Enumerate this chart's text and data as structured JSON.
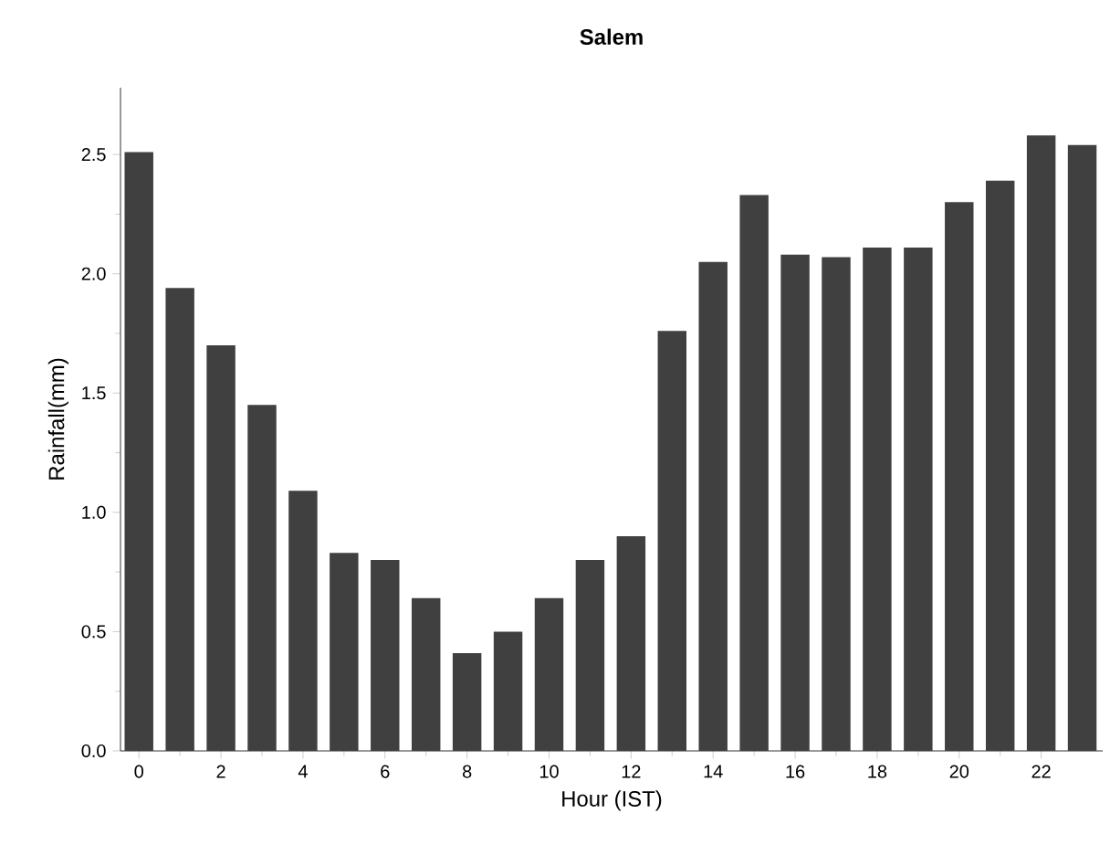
{
  "chart_data": {
    "type": "bar",
    "title": "Salem",
    "xlabel": "Hour (IST)",
    "ylabel": "Rainfall(mm)",
    "x": [
      0,
      1,
      2,
      3,
      4,
      5,
      6,
      7,
      8,
      9,
      10,
      11,
      12,
      13,
      14,
      15,
      16,
      17,
      18,
      19,
      20,
      21,
      22,
      23
    ],
    "values": [
      2.51,
      1.94,
      1.7,
      1.45,
      1.09,
      0.83,
      0.8,
      0.64,
      0.41,
      0.5,
      0.64,
      0.8,
      0.9,
      1.76,
      2.05,
      2.33,
      2.08,
      2.07,
      2.11,
      2.11,
      2.3,
      2.39,
      2.58,
      2.54
    ],
    "color": "#404040",
    "xlim": [
      -0.45,
      23.5
    ],
    "xticks": [
      0,
      2,
      4,
      6,
      8,
      10,
      12,
      14,
      16,
      18,
      20,
      22
    ],
    "ylim": [
      0,
      2.78
    ],
    "yticks": [
      {
        "value": 0,
        "label": "0.0"
      },
      0.5,
      {
        "value": 1,
        "label": "1.0"
      },
      1.5,
      {
        "value": 2,
        "label": "2.0"
      },
      2.5
    ]
  }
}
